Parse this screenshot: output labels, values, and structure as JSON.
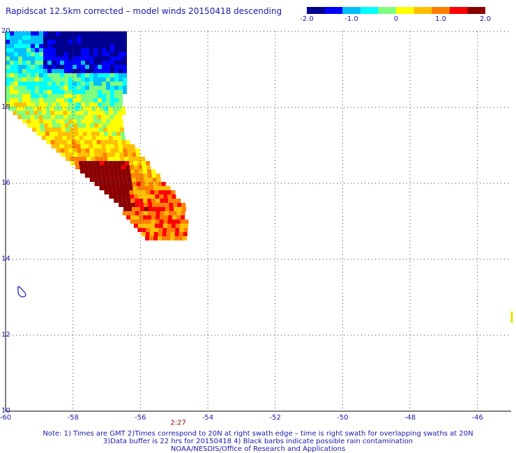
{
  "title": "Rapidscat 12.5km corrected – model winds 20150418 descending",
  "colorbar": {
    "min": -2.0,
    "max": 2.0,
    "ticks": [
      "-2.0",
      "-1.0",
      "0",
      "1.0",
      "2.0"
    ],
    "tick_values": [
      -2.0,
      -1.0,
      0,
      1.0,
      2.0
    ],
    "colors": [
      "#00008f",
      "#0000ff",
      "#00bfff",
      "#00ffff",
      "#7fff7f",
      "#ffff00",
      "#ffbf00",
      "#ff7f00",
      "#ff0000",
      "#8b0000"
    ]
  },
  "map": {
    "lon_range": [
      -60,
      -45
    ],
    "lat_range": [
      10,
      20
    ],
    "lon_ticks": [
      -60,
      -58,
      -56,
      -54,
      -52,
      -50,
      -48,
      -46
    ],
    "lat_ticks": [
      10,
      12,
      14,
      16,
      18,
      20
    ],
    "lon_labels": [
      "-60",
      "-58",
      "-56",
      "-54",
      "-52",
      "-50",
      "-48",
      "-46"
    ],
    "lat_labels": [
      "10",
      "12",
      "14",
      "16",
      "18",
      "20"
    ]
  },
  "time_annotation": {
    "text": "2:27",
    "lon": -55.0,
    "lat": 9.7
  },
  "notes": {
    "line1": "Note: 1) Times are GMT 2)Times correspond to 20N at right swath edge – time is right swath for overlapping swaths at 20N",
    "line2": "3)Data buffer is 22 hrs for 20150418 4) Black barbs indicate possible rain contamination",
    "line3": "NOAA/NESDIS/Office of Research and Applications"
  }
}
